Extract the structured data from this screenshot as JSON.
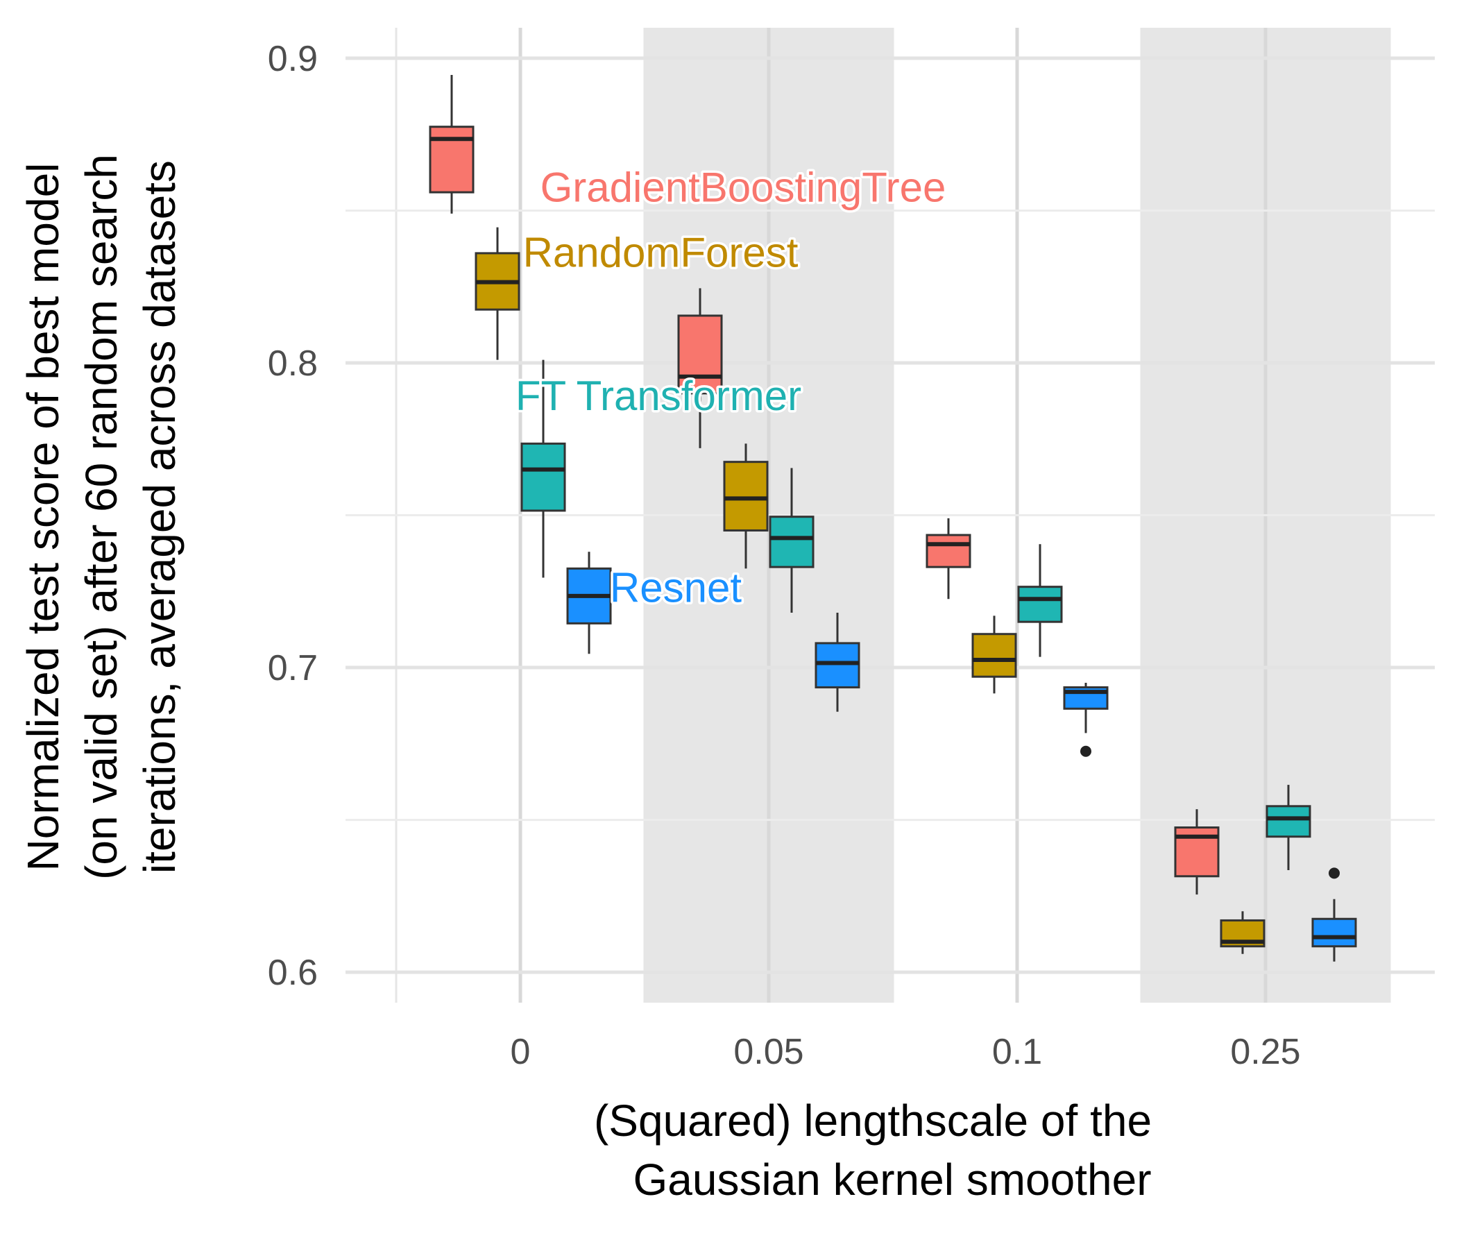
{
  "chart_data": {
    "type": "box",
    "title": "",
    "xlabel": [
      "(Squared) lengthscale of the",
      "Gaussian kernel smoother"
    ],
    "ylabel": [
      "Normalized test score of best model",
      "(on valid set) after 60 random search",
      "iterations, averaged across datasets"
    ],
    "categories": [
      "0",
      "0.05",
      "0.1",
      "0.25"
    ],
    "ylim": [
      0.59,
      0.91
    ],
    "yticks": [
      0.6,
      0.7,
      0.8,
      0.9
    ],
    "ytick_labels": [
      "0.6",
      "0.7",
      "0.8",
      "0.9"
    ],
    "grid": true,
    "shaded_categories": [
      "0.05",
      "0.25"
    ],
    "series": [
      {
        "name": "GradientBoostingTree",
        "color": "#F8766D",
        "label_color": "#F8766D",
        "boxes": [
          {
            "category": "0",
            "whisker_low": 0.849,
            "q1": 0.856,
            "median": 0.8735,
            "q3": 0.8775,
            "whisker_high": 0.8945,
            "outliers": []
          },
          {
            "category": "0.05",
            "whisker_low": 0.772,
            "q1": 0.79,
            "median": 0.7955,
            "q3": 0.8155,
            "whisker_high": 0.8245,
            "outliers": []
          },
          {
            "category": "0.1",
            "whisker_low": 0.7225,
            "q1": 0.733,
            "median": 0.7405,
            "q3": 0.7435,
            "whisker_high": 0.749,
            "outliers": []
          },
          {
            "category": "0.25",
            "whisker_low": 0.6255,
            "q1": 0.6315,
            "median": 0.6445,
            "q3": 0.6475,
            "whisker_high": 0.6535,
            "outliers": []
          }
        ]
      },
      {
        "name": "RandomForest",
        "color": "#C49A00",
        "label_color": "#C08A00",
        "boxes": [
          {
            "category": "0",
            "whisker_low": 0.801,
            "q1": 0.8175,
            "median": 0.8265,
            "q3": 0.836,
            "whisker_high": 0.8445,
            "outliers": []
          },
          {
            "category": "0.05",
            "whisker_low": 0.7325,
            "q1": 0.745,
            "median": 0.7555,
            "q3": 0.7675,
            "whisker_high": 0.7735,
            "outliers": []
          },
          {
            "category": "0.1",
            "whisker_low": 0.6915,
            "q1": 0.697,
            "median": 0.7025,
            "q3": 0.711,
            "whisker_high": 0.717,
            "outliers": []
          },
          {
            "category": "0.25",
            "whisker_low": 0.606,
            "q1": 0.6085,
            "median": 0.61,
            "q3": 0.617,
            "whisker_high": 0.62,
            "outliers": []
          }
        ]
      },
      {
        "name": "FT Transformer",
        "color": "#1FB6B3",
        "label_color": "#1FB1B1",
        "boxes": [
          {
            "category": "0",
            "whisker_low": 0.7295,
            "q1": 0.7515,
            "median": 0.765,
            "q3": 0.7735,
            "whisker_high": 0.801,
            "outliers": []
          },
          {
            "category": "0.05",
            "whisker_low": 0.718,
            "q1": 0.733,
            "median": 0.7425,
            "q3": 0.7495,
            "whisker_high": 0.7655,
            "outliers": []
          },
          {
            "category": "0.1",
            "whisker_low": 0.7035,
            "q1": 0.715,
            "median": 0.7225,
            "q3": 0.7265,
            "whisker_high": 0.7405,
            "outliers": []
          },
          {
            "category": "0.25",
            "whisker_low": 0.6335,
            "q1": 0.6445,
            "median": 0.6505,
            "q3": 0.6545,
            "whisker_high": 0.6615,
            "outliers": []
          }
        ]
      },
      {
        "name": "Resnet",
        "color": "#1A90FF",
        "label_color": "#1A90FF",
        "boxes": [
          {
            "category": "0",
            "whisker_low": 0.7045,
            "q1": 0.7145,
            "median": 0.7235,
            "q3": 0.7325,
            "whisker_high": 0.738,
            "outliers": []
          },
          {
            "category": "0.05",
            "whisker_low": 0.6855,
            "q1": 0.6935,
            "median": 0.7015,
            "q3": 0.708,
            "whisker_high": 0.718,
            "outliers": []
          },
          {
            "category": "0.1",
            "whisker_low": 0.6785,
            "q1": 0.6865,
            "median": 0.692,
            "q3": 0.6935,
            "whisker_high": 0.695,
            "outliers": [
              0.6725
            ]
          },
          {
            "category": "0.25",
            "whisker_low": 0.6035,
            "q1": 0.6085,
            "median": 0.6115,
            "q3": 0.6175,
            "whisker_high": 0.624,
            "outliers": [
              0.6325
            ]
          }
        ]
      }
    ],
    "series_labels": [
      {
        "text": "GradientBoostingTree",
        "series": "GradientBoostingTree",
        "x_category": "0",
        "x_offset": 0.08,
        "y": 0.853
      },
      {
        "text": "RandomForest",
        "series": "RandomForest",
        "x_category": "0",
        "x_offset": 0.01,
        "y": 0.8315
      },
      {
        "text": "FT Transformer",
        "series": "FT Transformer",
        "x_category": "0",
        "x_offset": -0.02,
        "y": 0.7845
      },
      {
        "text": "Resnet",
        "series": "Resnet",
        "x_category": "0",
        "x_offset": 0.36,
        "y": 0.7215
      }
    ]
  }
}
